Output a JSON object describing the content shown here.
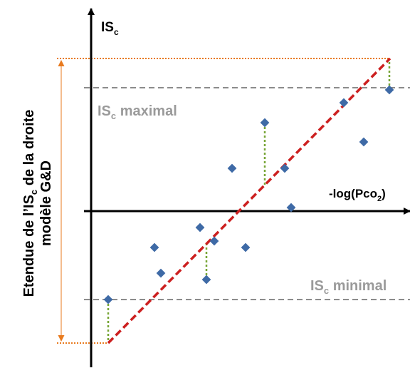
{
  "labels": {
    "y_axis_main": "IS",
    "y_axis_sub": "c",
    "x_axis_prefix": "-log(Pco",
    "x_axis_sub": "2",
    "x_axis_suffix": ")",
    "max_main": "IS",
    "max_sub": "c",
    "max_text": " maximal",
    "min_main": "IS",
    "min_sub": "c",
    "min_text": " minimal",
    "range_line1_a": "Etendue de l’IS",
    "range_line1_sub": "c",
    "range_line1_b": " de la droite",
    "range_line2": "modèle G&D"
  },
  "colors": {
    "axis": "#000000",
    "points": "#3e6aa6",
    "regression": "#cc1f1f",
    "residuals": "#77a535",
    "limits": "#8c8c8c",
    "range": "#e87a1e",
    "label_gray": "#9a9a9a"
  }
}
